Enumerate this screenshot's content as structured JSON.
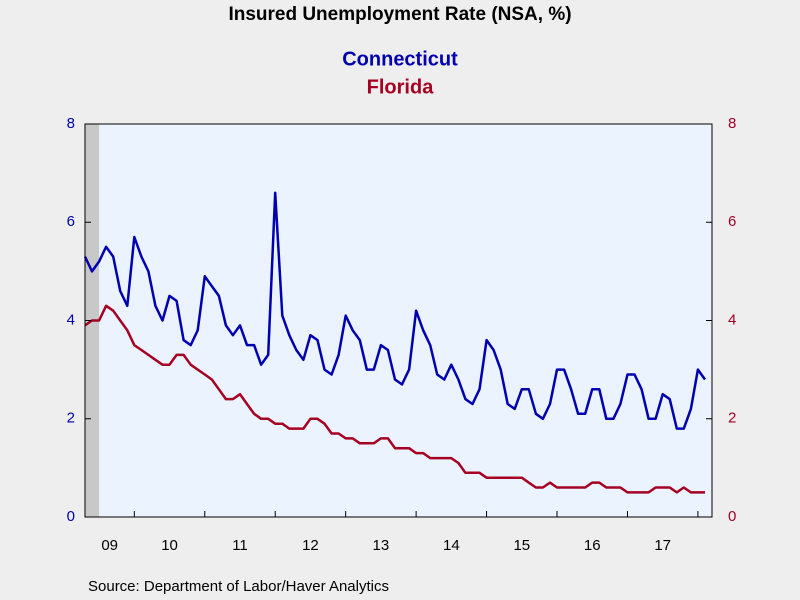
{
  "chart_data": {
    "type": "line",
    "title": "Insured Unemployment Rate (NSA, %)",
    "source": "Source:  Department of Labor/Haver Analytics",
    "xlim": [
      2009.3,
      2018.2
    ],
    "xticks": [
      2010,
      2011,
      2012,
      2013,
      2014,
      2015,
      2016,
      2017,
      2018
    ],
    "x_labels": [
      {
        "value": 2009,
        "label": "09"
      },
      {
        "value": 2010,
        "label": "10"
      },
      {
        "value": 2011,
        "label": "11"
      },
      {
        "value": 2012,
        "label": "12"
      },
      {
        "value": 2013,
        "label": "13"
      },
      {
        "value": 2014,
        "label": "14"
      },
      {
        "value": 2015,
        "label": "15"
      },
      {
        "value": 2016,
        "label": "16"
      },
      {
        "value": 2017,
        "label": "17"
      }
    ],
    "recession": [
      2009.3,
      2009.5
    ],
    "ylim": [
      0,
      8
    ],
    "yticks": [
      0,
      2,
      4,
      6,
      8
    ],
    "y2lim": [
      0,
      8
    ],
    "y2ticks": [
      0,
      2,
      4,
      6,
      8
    ],
    "y_color": "#0000aa",
    "y2_color": "#a0002a",
    "x": [
      2009.3,
      2009.4,
      2009.5,
      2009.6,
      2009.7,
      2009.8,
      2009.9,
      2010.0,
      2010.1,
      2010.2,
      2010.3,
      2010.4,
      2010.5,
      2010.6,
      2010.7,
      2010.8,
      2010.9,
      2011.0,
      2011.1,
      2011.2,
      2011.3,
      2011.4,
      2011.5,
      2011.6,
      2011.7,
      2011.8,
      2011.9,
      2012.0,
      2012.1,
      2012.2,
      2012.3,
      2012.4,
      2012.5,
      2012.6,
      2012.7,
      2012.8,
      2012.9,
      2013.0,
      2013.1,
      2013.2,
      2013.3,
      2013.4,
      2013.5,
      2013.6,
      2013.7,
      2013.8,
      2013.9,
      2014.0,
      2014.1,
      2014.2,
      2014.3,
      2014.4,
      2014.5,
      2014.6,
      2014.7,
      2014.8,
      2014.9,
      2015.0,
      2015.1,
      2015.2,
      2015.3,
      2015.4,
      2015.5,
      2015.6,
      2015.7,
      2015.8,
      2015.9,
      2016.0,
      2016.1,
      2016.2,
      2016.3,
      2016.4,
      2016.5,
      2016.6,
      2016.7,
      2016.8,
      2016.9,
      2017.0,
      2017.1,
      2017.2,
      2017.3,
      2017.4,
      2017.5,
      2017.6,
      2017.7,
      2017.8,
      2017.9,
      2018.0,
      2018.1
    ],
    "series": [
      {
        "name": "Connecticut",
        "color": "#0000b0",
        "axis": "y",
        "values": [
          5.3,
          5.0,
          5.2,
          5.5,
          5.3,
          4.6,
          4.3,
          5.7,
          5.3,
          5.0,
          4.3,
          4.0,
          4.5,
          4.4,
          3.6,
          3.5,
          3.8,
          4.9,
          4.7,
          4.5,
          3.9,
          3.7,
          3.9,
          3.5,
          3.5,
          3.1,
          3.3,
          6.6,
          4.1,
          3.7,
          3.4,
          3.2,
          3.7,
          3.6,
          3.0,
          2.9,
          3.3,
          4.1,
          3.8,
          3.6,
          3.0,
          3.0,
          3.5,
          3.4,
          2.8,
          2.7,
          3.0,
          4.2,
          3.8,
          3.5,
          2.9,
          2.8,
          3.1,
          2.8,
          2.4,
          2.3,
          2.6,
          3.6,
          3.4,
          3.0,
          2.3,
          2.2,
          2.6,
          2.6,
          2.1,
          2.0,
          2.3,
          3.0,
          3.0,
          2.6,
          2.1,
          2.1,
          2.6,
          2.6,
          2.0,
          2.0,
          2.3,
          2.9,
          2.9,
          2.6,
          2.0,
          2.0,
          2.5,
          2.4,
          1.8,
          1.8,
          2.2,
          3.0,
          2.8
        ]
      },
      {
        "name": "Florida",
        "color": "#a50021",
        "axis": "y2",
        "values": [
          3.9,
          4.0,
          4.0,
          4.3,
          4.2,
          4.0,
          3.8,
          3.5,
          3.4,
          3.3,
          3.2,
          3.1,
          3.1,
          3.3,
          3.3,
          3.1,
          3.0,
          2.9,
          2.8,
          2.6,
          2.4,
          2.4,
          2.5,
          2.3,
          2.1,
          2.0,
          2.0,
          1.9,
          1.9,
          1.8,
          1.8,
          1.8,
          2.0,
          2.0,
          1.9,
          1.7,
          1.7,
          1.6,
          1.6,
          1.5,
          1.5,
          1.5,
          1.6,
          1.6,
          1.4,
          1.4,
          1.4,
          1.3,
          1.3,
          1.2,
          1.2,
          1.2,
          1.2,
          1.1,
          0.9,
          0.9,
          0.9,
          0.8,
          0.8,
          0.8,
          0.8,
          0.8,
          0.8,
          0.7,
          0.6,
          0.6,
          0.7,
          0.6,
          0.6,
          0.6,
          0.6,
          0.6,
          0.7,
          0.7,
          0.6,
          0.6,
          0.6,
          0.5,
          0.5,
          0.5,
          0.5,
          0.6,
          0.6,
          0.6,
          0.5,
          0.6,
          0.5,
          0.5,
          0.5
        ]
      }
    ]
  }
}
